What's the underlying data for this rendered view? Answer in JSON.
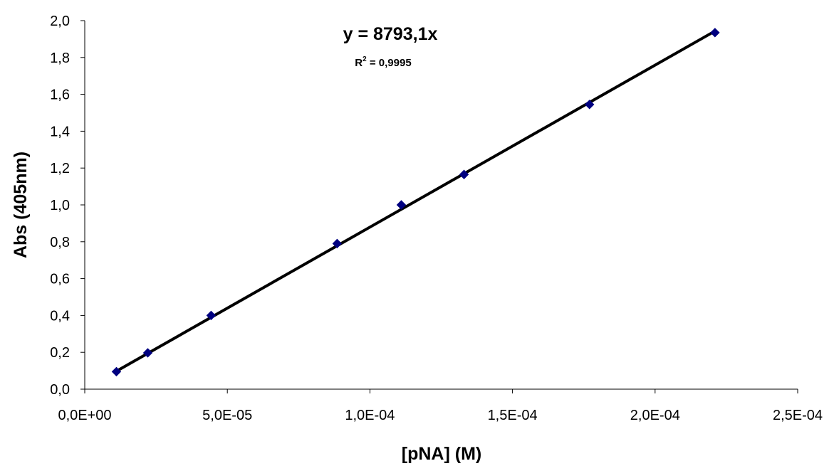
{
  "chart_data": {
    "type": "scatter",
    "xlabel": "[pNA] (M)",
    "ylabel": "Abs (405nm)",
    "xlim": [
      0,
      0.00025
    ],
    "ylim": [
      0,
      2.0
    ],
    "grid": false,
    "x_ticks": [
      0,
      5e-05,
      0.0001,
      0.00015,
      0.0002,
      0.00025
    ],
    "x_tick_labels": [
      "0,0E+00",
      "5,0E-05",
      "1,0E-04",
      "1,5E-04",
      "2,0E-04",
      "2,5E-04"
    ],
    "y_ticks": [
      0,
      0.2,
      0.4,
      0.6,
      0.8,
      1.0,
      1.2,
      1.4,
      1.6,
      1.8,
      2.0
    ],
    "y_tick_labels": [
      "0,0",
      "0,2",
      "0,4",
      "0,6",
      "0,8",
      "1,0",
      "1,2",
      "1,4",
      "1,6",
      "1,8",
      "2,0"
    ],
    "series": [
      {
        "marker": "diamond",
        "color": "#000080",
        "x": [
          1.11e-05,
          2.21e-05,
          4.43e-05,
          8.85e-05,
          0.000111,
          0.000133,
          0.000177,
          0.000221
        ],
        "y": [
          0.095,
          0.197,
          0.4,
          0.79,
          1.0,
          1.165,
          1.545,
          1.935
        ]
      }
    ],
    "trendline": {
      "type": "linear",
      "slope": 8793.1,
      "intercept": 0,
      "color": "#000000",
      "equation": "y = 8793,1x",
      "r2_prefix": "R",
      "r2_sup": "2",
      "r2_value": " = 0,9995"
    }
  }
}
